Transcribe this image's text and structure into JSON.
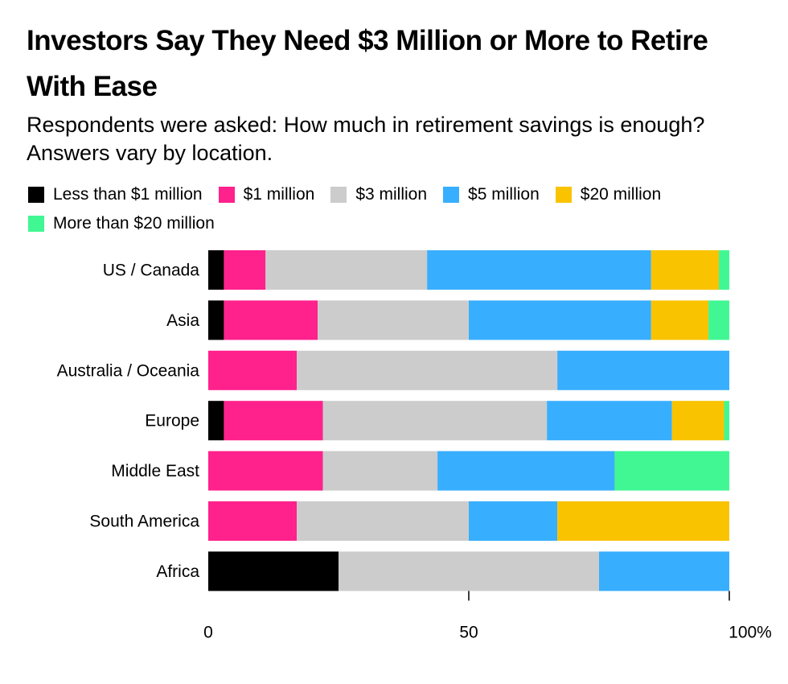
{
  "title": "Investors Say They Need $3 Million or More to Retire With Ease",
  "subtitle": "Respondents were asked: How much in retirement savings is enough? Answers vary by location.",
  "chart_data": {
    "type": "bar",
    "orientation": "horizontal",
    "stacked": true,
    "title": "Investors Say They Need $3 Million or More to Retire With Ease",
    "subtitle": "Respondents were asked: How much in retirement savings is enough? Answers vary by location.",
    "xlabel": "",
    "ylabel": "",
    "xlim": [
      0,
      100
    ],
    "x_ticks": [
      {
        "value": 0,
        "label": "0"
      },
      {
        "value": 50,
        "label": "50"
      },
      {
        "value": 100,
        "label": "100%"
      }
    ],
    "grid": false,
    "legend_position": "top",
    "categories": [
      "US / Canada",
      "Asia",
      "Australia / Oceania",
      "Europe",
      "Middle East",
      "South America",
      "Africa"
    ],
    "series": [
      {
        "name": "Less than $1 million",
        "color": "#000000",
        "values": [
          3,
          3,
          0,
          3,
          0,
          0,
          25
        ]
      },
      {
        "name": "$1 million",
        "color": "#ff218c",
        "values": [
          8,
          18,
          17,
          19,
          22,
          17,
          0
        ]
      },
      {
        "name": "$3 million",
        "color": "#cccccc",
        "values": [
          31,
          29,
          50,
          43,
          22,
          33,
          50
        ]
      },
      {
        "name": "$5 million",
        "color": "#38aefe",
        "values": [
          43,
          35,
          33,
          24,
          34,
          17,
          25
        ]
      },
      {
        "name": "$20 million",
        "color": "#f9c300",
        "values": [
          13,
          11,
          0,
          10,
          0,
          33,
          0
        ]
      },
      {
        "name": "More than $20 million",
        "color": "#41f793",
        "values": [
          2,
          4,
          0,
          1,
          22,
          0,
          0
        ]
      }
    ]
  }
}
